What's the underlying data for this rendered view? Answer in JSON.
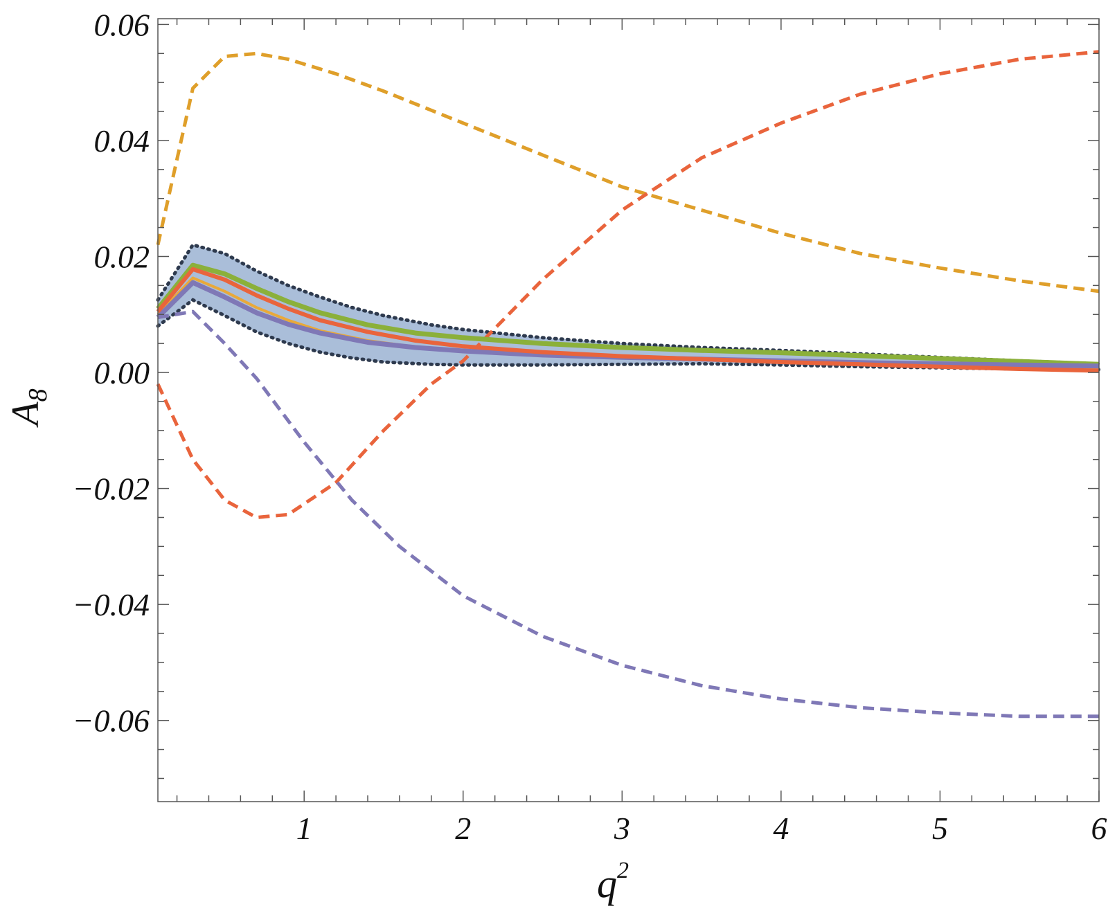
{
  "chart_data": {
    "type": "line",
    "title": "",
    "xlabel": "q",
    "xlabel_superscript": "2",
    "ylabel": "A",
    "ylabel_subscript": "8",
    "xlim": [
      0.08,
      6.0
    ],
    "ylim": [
      -0.074,
      0.061
    ],
    "grid": false,
    "x_ticks": [
      {
        "value": 1,
        "label": "1"
      },
      {
        "value": 2,
        "label": "2"
      },
      {
        "value": 3,
        "label": "3"
      },
      {
        "value": 4,
        "label": "4"
      },
      {
        "value": 5,
        "label": "5"
      },
      {
        "value": 6,
        "label": "6"
      }
    ],
    "y_ticks": [
      {
        "value": 0.06,
        "label": "0.06"
      },
      {
        "value": 0.04,
        "label": "0.04"
      },
      {
        "value": 0.02,
        "label": "0.02"
      },
      {
        "value": 0.0,
        "label": "0.00"
      },
      {
        "value": -0.02,
        "label": "−0.02"
      },
      {
        "value": -0.04,
        "label": "−0.04"
      },
      {
        "value": -0.06,
        "label": "−0.06"
      }
    ],
    "x_minor_step": 0.2,
    "y_minor_step": 0.005,
    "band": {
      "color": "#aabed9",
      "edge_color": "#2e3a4e",
      "x": [
        0.08,
        0.3,
        0.5,
        0.7,
        0.9,
        1.1,
        1.3,
        1.5,
        1.8,
        2.0,
        2.5,
        3.0,
        3.5,
        4.0,
        4.5,
        5.0,
        5.5,
        6.0
      ],
      "upper": [
        0.0125,
        0.022,
        0.0205,
        0.0175,
        0.015,
        0.013,
        0.0112,
        0.0098,
        0.0082,
        0.0074,
        0.006,
        0.005,
        0.0043,
        0.0038,
        0.0032,
        0.0026,
        0.002,
        0.0015
      ],
      "lower": [
        0.008,
        0.0125,
        0.0098,
        0.007,
        0.005,
        0.0035,
        0.0025,
        0.0018,
        0.0014,
        0.0013,
        0.0013,
        0.0014,
        0.0015,
        0.0013,
        0.001,
        0.0008,
        0.0006,
        0.0005
      ]
    },
    "series": [
      {
        "color": "#df9f2a",
        "style": "dashed",
        "width": 5,
        "x": [
          0.08,
          0.3,
          0.5,
          0.7,
          0.9,
          1.2,
          1.5,
          2.0,
          2.5,
          3.0,
          3.5,
          4.0,
          4.5,
          5.0,
          5.5,
          6.0
        ],
        "y": [
          0.022,
          0.049,
          0.0545,
          0.055,
          0.054,
          0.0515,
          0.0485,
          0.043,
          0.0375,
          0.032,
          0.028,
          0.024,
          0.0205,
          0.018,
          0.0158,
          0.014
        ]
      },
      {
        "color": "#e9643c",
        "style": "dashed",
        "width": 5,
        "x": [
          0.08,
          0.3,
          0.5,
          0.7,
          0.9,
          1.2,
          1.5,
          1.8,
          2.0,
          2.5,
          3.0,
          3.5,
          4.0,
          4.5,
          5.0,
          5.5,
          6.0
        ],
        "y": [
          -0.002,
          -0.015,
          -0.022,
          -0.025,
          -0.0245,
          -0.019,
          -0.01,
          -0.002,
          0.002,
          0.016,
          0.028,
          0.037,
          0.043,
          0.048,
          0.0515,
          0.054,
          0.0553
        ]
      },
      {
        "color": "#7f78b6",
        "style": "dashed",
        "width": 5,
        "x": [
          0.08,
          0.3,
          0.5,
          0.7,
          1.0,
          1.3,
          1.6,
          2.0,
          2.5,
          3.0,
          3.5,
          4.0,
          4.5,
          5.0,
          5.5,
          6.0
        ],
        "y": [
          0.0095,
          0.0105,
          0.005,
          -0.001,
          -0.012,
          -0.022,
          -0.03,
          -0.0385,
          -0.0455,
          -0.0505,
          -0.054,
          -0.0563,
          -0.0578,
          -0.0587,
          -0.0593,
          -0.0593
        ]
      },
      {
        "color": "#8bb03a",
        "style": "solid",
        "width": 7,
        "x": [
          0.08,
          0.3,
          0.5,
          0.7,
          0.9,
          1.1,
          1.4,
          1.7,
          2.0,
          2.5,
          3.0,
          3.5,
          4.0,
          4.5,
          5.0,
          5.5,
          6.0
        ],
        "y": [
          0.011,
          0.0185,
          0.017,
          0.0145,
          0.0122,
          0.0103,
          0.0082,
          0.0068,
          0.006,
          0.005,
          0.0043,
          0.0038,
          0.0034,
          0.0029,
          0.0024,
          0.0019,
          0.0014
        ]
      },
      {
        "color": "#e9a93a",
        "style": "solid",
        "width": 4,
        "x": [
          0.08,
          0.3,
          0.5,
          0.7,
          0.9,
          1.1,
          1.4,
          1.7,
          2.0,
          2.5,
          3.0,
          3.5,
          4.0,
          4.5,
          5.0,
          5.5,
          6.0
        ],
        "y": [
          0.01,
          0.0163,
          0.014,
          0.0112,
          0.009,
          0.0072,
          0.0055,
          0.0044,
          0.0037,
          0.003,
          0.0025,
          0.0022,
          0.0018,
          0.0015,
          0.0011,
          0.0008,
          0.0005
        ]
      },
      {
        "color": "#7f78b6",
        "style": "solid",
        "width": 7,
        "x": [
          0.08,
          0.3,
          0.5,
          0.7,
          0.9,
          1.1,
          1.4,
          1.7,
          2.0,
          2.5,
          3.0,
          3.5,
          4.0,
          4.5,
          5.0,
          5.5,
          6.0
        ],
        "y": [
          0.0095,
          0.0155,
          0.013,
          0.0103,
          0.0083,
          0.0068,
          0.0052,
          0.0043,
          0.0037,
          0.003,
          0.0026,
          0.0023,
          0.002,
          0.0017,
          0.0015,
          0.0013,
          0.0011
        ]
      },
      {
        "color": "#e9643c",
        "style": "solid",
        "width": 6,
        "x": [
          0.08,
          0.3,
          0.5,
          0.7,
          0.9,
          1.1,
          1.4,
          1.7,
          2.0,
          2.5,
          3.0,
          3.5,
          4.0,
          4.5,
          5.0,
          5.5,
          6.0
        ],
        "y": [
          0.0105,
          0.0178,
          0.016,
          0.0133,
          0.011,
          0.009,
          0.007,
          0.0055,
          0.0045,
          0.0035,
          0.0028,
          0.0023,
          0.0018,
          0.0014,
          0.001,
          0.0006,
          0.0003
        ]
      }
    ]
  }
}
